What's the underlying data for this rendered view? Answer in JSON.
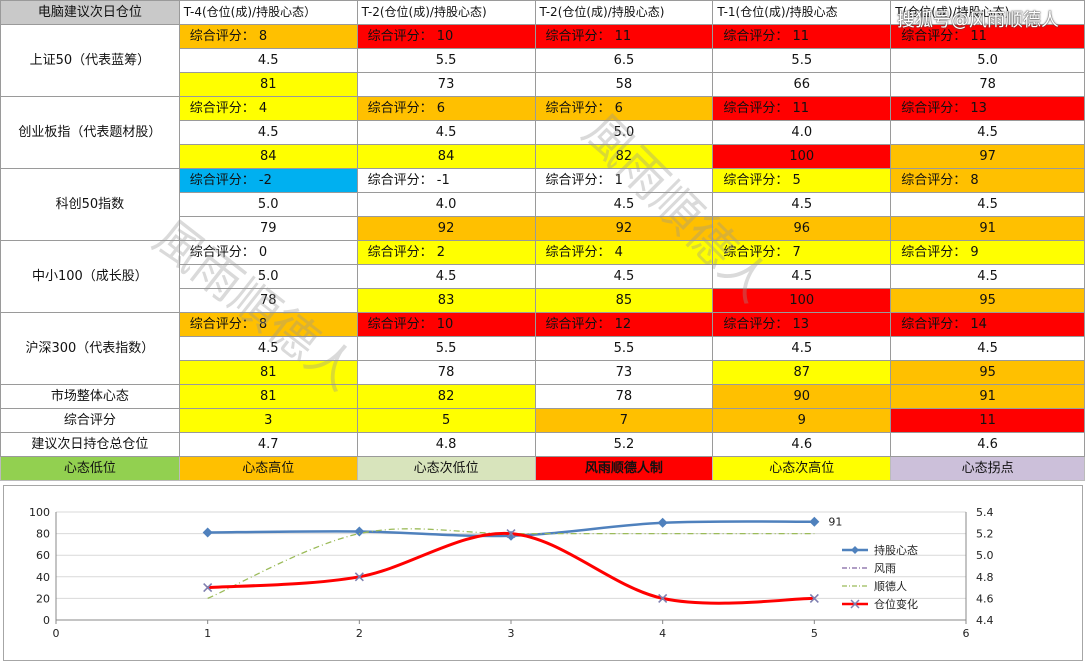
{
  "header": {
    "corner": "电脑建议次日仓位",
    "cols": [
      "T-4(仓位(成)/持股心态）",
      "T-2(仓位(成)/持股心态)",
      "T-2(仓位(成)/持股心态)",
      "T-1(仓位(成)/持股心态",
      "T(仓位(成)/持股心态)"
    ]
  },
  "indices": [
    {
      "name": "上证50（代表蓝筹）",
      "scores": [
        "综合评分： 8",
        "综合评分： 10",
        "综合评分： 11",
        "综合评分： 11",
        "综合评分： 11"
      ],
      "positions": [
        "4.5",
        "5.5",
        "6.5",
        "5.5",
        "5.0"
      ],
      "moods": [
        "81",
        "73",
        "58",
        "66",
        "78"
      ],
      "score_colors": [
        "#ffc000",
        "#ff0000",
        "#ff0000",
        "#ff0000",
        "#ff0000"
      ],
      "mood_colors": [
        "#ffff00",
        "#ffffff",
        "#ffffff",
        "#ffffff",
        "#ffffff"
      ]
    },
    {
      "name": "创业板指（代表题材股）",
      "scores": [
        "综合评分： 4",
        "综合评分： 6",
        "综合评分： 6",
        "综合评分： 11",
        "综合评分： 13"
      ],
      "positions": [
        "4.5",
        "4.5",
        "5.0",
        "4.0",
        "4.5"
      ],
      "moods": [
        "84",
        "84",
        "82",
        "100",
        "97"
      ],
      "score_colors": [
        "#ffff00",
        "#ffc000",
        "#ffc000",
        "#ff0000",
        "#ff0000"
      ],
      "mood_colors": [
        "#ffff00",
        "#ffff00",
        "#ffff00",
        "#ff0000",
        "#ffc000"
      ]
    },
    {
      "name": "科创50指数",
      "scores": [
        "综合评分： -2",
        "综合评分： -1",
        "综合评分： 1",
        "综合评分： 5",
        "综合评分： 8"
      ],
      "positions": [
        "5.0",
        "4.0",
        "4.5",
        "4.5",
        "4.5"
      ],
      "moods": [
        "79",
        "92",
        "92",
        "96",
        "91"
      ],
      "score_colors": [
        "#00b0f0",
        "#ffffff",
        "#ffffff",
        "#ffff00",
        "#ffc000"
      ],
      "mood_colors": [
        "#ffffff",
        "#ffc000",
        "#ffc000",
        "#ffc000",
        "#ffc000"
      ]
    },
    {
      "name": "中小100（成长股）",
      "scores": [
        "综合评分： 0",
        "综合评分： 2",
        "综合评分： 4",
        "综合评分： 7",
        "综合评分： 9"
      ],
      "positions": [
        "5.0",
        "4.5",
        "4.5",
        "4.5",
        "4.5"
      ],
      "moods": [
        "78",
        "83",
        "85",
        "100",
        "95"
      ],
      "score_colors": [
        "#ffffff",
        "#ffff00",
        "#ffff00",
        "#ffff00",
        "#ffff00"
      ],
      "mood_colors": [
        "#ffffff",
        "#ffff00",
        "#ffff00",
        "#ff0000",
        "#ffc000"
      ]
    },
    {
      "name": "沪深300（代表指数）",
      "scores": [
        "综合评分： 8",
        "综合评分： 10",
        "综合评分： 12",
        "综合评分： 13",
        "综合评分： 14"
      ],
      "positions": [
        "4.5",
        "5.5",
        "5.5",
        "4.5",
        "4.5"
      ],
      "moods": [
        "81",
        "78",
        "73",
        "87",
        "95"
      ],
      "score_colors": [
        "#ffc000",
        "#ff0000",
        "#ff0000",
        "#ff0000",
        "#ff0000"
      ],
      "mood_colors": [
        "#ffff00",
        "#ffffff",
        "#ffffff",
        "#ffff00",
        "#ffc000"
      ]
    }
  ],
  "summary_rows": [
    {
      "label": "市场整体心态",
      "values": [
        "81",
        "82",
        "78",
        "90",
        "91"
      ],
      "colors": [
        "#ffff00",
        "#ffff00",
        "#ffffff",
        "#ffc000",
        "#ffc000"
      ]
    },
    {
      "label": "综合评分",
      "values": [
        "3",
        "5",
        "7",
        "9",
        "11"
      ],
      "colors": [
        "#ffff00",
        "#ffff00",
        "#ffc000",
        "#ffc000",
        "#ff0000"
      ]
    },
    {
      "label": "建议次日持仓总仓位",
      "values": [
        "4.7",
        "4.8",
        "5.2",
        "4.6",
        "4.6"
      ],
      "colors": [
        "#ffffff",
        "#ffffff",
        "#ffffff",
        "#ffffff",
        "#ffffff"
      ]
    }
  ],
  "legend_row": [
    {
      "text": "心态低位",
      "color": "#92d050"
    },
    {
      "text": "心态高位",
      "color": "#ffc000"
    },
    {
      "text": "心态次低位",
      "color": "#d8e4bc"
    },
    {
      "text": "风雨顺德人制",
      "color": "#ff0000"
    },
    {
      "text": "心态次高位",
      "color": "#ffff00"
    },
    {
      "text": "心态拐点",
      "color": "#ccc0da"
    }
  ],
  "brand": "搜狐号@风雨顺德人",
  "watermark": "風雨順德人",
  "chart_data": {
    "type": "line",
    "xlim": [
      0,
      6
    ],
    "x_ticks": [
      "0",
      "1",
      "2",
      "3",
      "4",
      "5",
      "6"
    ],
    "ylim_left": [
      0,
      100
    ],
    "y_ticks_left": [
      "0",
      "20",
      "40",
      "60",
      "80",
      "100"
    ],
    "ylim_right": [
      4.4,
      5.4
    ],
    "y_ticks_right": [
      "4.4",
      "4.6",
      "4.8",
      "5.0",
      "5.2",
      "5.4"
    ],
    "grid": true,
    "legend_position": "right",
    "series": [
      {
        "name": "持股心态",
        "axis": "left",
        "x": [
          1,
          2,
          3,
          4,
          5
        ],
        "values": [
          81,
          82,
          78,
          90,
          91
        ],
        "color": "#4f81bd",
        "marker": "diamond",
        "end_label": "91"
      },
      {
        "name": "风雨",
        "axis": "left",
        "x": [],
        "values": [],
        "color": "#8064a2",
        "dash": "dash-dot"
      },
      {
        "name": "顺德人",
        "axis": "left",
        "x": [
          1,
          2,
          3,
          4,
          5
        ],
        "values": [
          20,
          80,
          80,
          80,
          80
        ],
        "color": "#9bbb59",
        "dash": "dash-dot"
      },
      {
        "name": "仓位变化",
        "axis": "right",
        "x": [
          1,
          2,
          3,
          4,
          5
        ],
        "values": [
          4.7,
          4.8,
          5.2,
          4.6,
          4.6
        ],
        "color": "#ff0000",
        "marker": "x"
      }
    ]
  }
}
